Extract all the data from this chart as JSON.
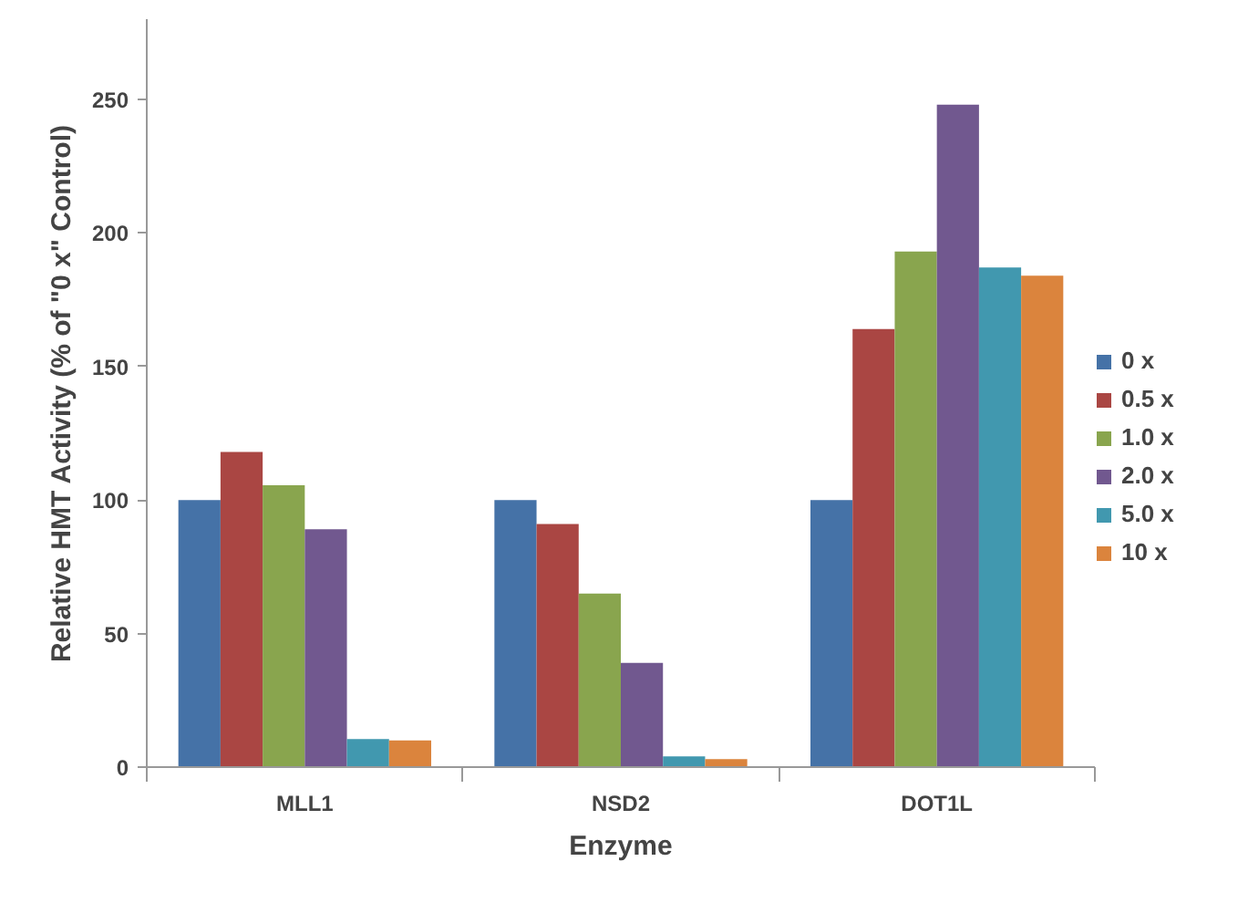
{
  "chart_data": {
    "type": "bar",
    "xlabel": "Enzyme",
    "ylabel": "Relative HMT Activity (% of \"0 x\" Control)",
    "categories": [
      "MLL1",
      "NSD2",
      "DOT1L"
    ],
    "ylim": [
      0,
      280
    ],
    "yticks": [
      0,
      50,
      100,
      150,
      200,
      250
    ],
    "grid": false,
    "legend": "right",
    "series": [
      {
        "name": "0 x",
        "color": "#4572a7",
        "values": [
          100,
          100,
          100
        ]
      },
      {
        "name": "0.5 x",
        "color": "#aa4643",
        "values": [
          118,
          91,
          164
        ]
      },
      {
        "name": "1.0 x",
        "color": "#89a54e",
        "values": [
          105.5,
          65,
          193
        ]
      },
      {
        "name": "2.0 x",
        "color": "#71588f",
        "values": [
          89,
          39,
          248
        ]
      },
      {
        "name": "5.0 x",
        "color": "#4198af",
        "values": [
          10.5,
          4,
          187
        ]
      },
      {
        "name": "10 x",
        "color": "#db843d",
        "values": [
          10,
          3,
          184
        ]
      }
    ]
  }
}
